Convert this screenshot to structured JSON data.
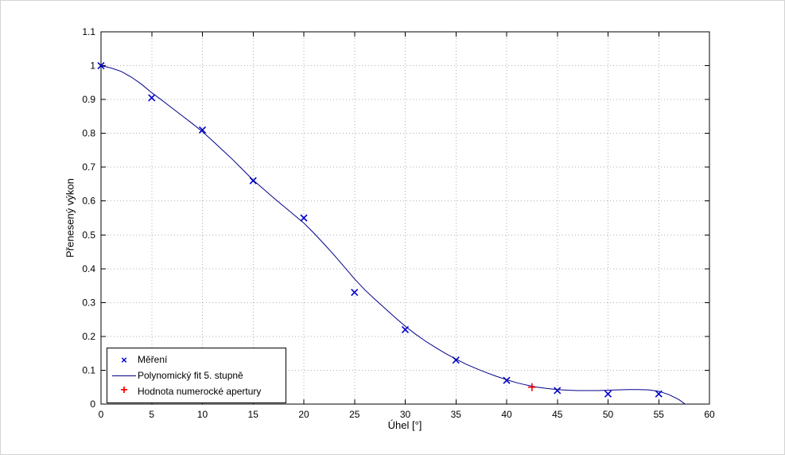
{
  "window": {
    "background": "#ffffff",
    "frame_color": "#d4d4d4"
  },
  "chart_data": {
    "type": "scatter",
    "title": "",
    "xlabel": "Úhel [°]",
    "ylabel": "Přenesený výkon",
    "xlim": [
      0,
      60
    ],
    "ylim": [
      0,
      1.1
    ],
    "xticks": [
      0,
      5,
      10,
      15,
      20,
      25,
      30,
      35,
      40,
      45,
      50,
      55,
      60
    ],
    "xtick_labels": [
      "0",
      "5",
      "10",
      "15",
      "20",
      "25",
      "30",
      "35",
      "40",
      "45",
      "50",
      "55",
      "60"
    ],
    "yticks": [
      0,
      0.1,
      0.2,
      0.3,
      0.4,
      0.5,
      0.6,
      0.7,
      0.8,
      0.9,
      1,
      1.1
    ],
    "ytick_labels": [
      "0",
      "0.1",
      "0.2",
      "0.3",
      "0.4",
      "0.5",
      "0.6",
      "0.7",
      "0.8",
      "0.9",
      "1",
      "1.1"
    ],
    "grid": true,
    "grid_style": "dotted",
    "grid_color": "#b0b0b0",
    "axis_color": "#000000",
    "legend_position": "bottom-left",
    "series": [
      {
        "name": "Měření",
        "type": "scatter",
        "marker": "x",
        "color": "#0000cc",
        "x": [
          0,
          5,
          10,
          15,
          20,
          25,
          30,
          35,
          40,
          45,
          50,
          55
        ],
        "y": [
          1.0,
          0.905,
          0.81,
          0.66,
          0.55,
          0.33,
          0.22,
          0.13,
          0.07,
          0.04,
          0.03,
          0.03
        ]
      },
      {
        "name": "Polynomický fit 5. stupně",
        "type": "line",
        "marker": "none",
        "color": "#00008b",
        "x": [
          0,
          1,
          2,
          3,
          4,
          5,
          6,
          7,
          8,
          9,
          10,
          11,
          12,
          13,
          14,
          15,
          16,
          17,
          18,
          19,
          20,
          21,
          22,
          23,
          24,
          25,
          26,
          27,
          28,
          29,
          30,
          31,
          32,
          33,
          34,
          35,
          36,
          37,
          38,
          39,
          40,
          41,
          42,
          43,
          44,
          45,
          46,
          47,
          48,
          49,
          50,
          51,
          52,
          53,
          54,
          55,
          56,
          57,
          57.6
        ],
        "y": [
          1.0,
          0.993,
          0.983,
          0.966,
          0.945,
          0.92,
          0.898,
          0.875,
          0.852,
          0.829,
          0.805,
          0.778,
          0.75,
          0.722,
          0.692,
          0.662,
          0.636,
          0.61,
          0.585,
          0.56,
          0.535,
          0.505,
          0.473,
          0.44,
          0.405,
          0.37,
          0.338,
          0.31,
          0.283,
          0.256,
          0.23,
          0.207,
          0.186,
          0.167,
          0.149,
          0.133,
          0.118,
          0.105,
          0.093,
          0.082,
          0.072,
          0.063,
          0.056,
          0.05,
          0.046,
          0.043,
          0.041,
          0.04,
          0.04,
          0.04,
          0.041,
          0.042,
          0.043,
          0.043,
          0.042,
          0.038,
          0.028,
          0.013,
          0
        ]
      },
      {
        "name": "Hodnota numerocké apertury",
        "type": "scatter",
        "marker": "+",
        "color": "#ff0000",
        "x": [
          42.5
        ],
        "y": [
          0.05
        ]
      }
    ]
  }
}
